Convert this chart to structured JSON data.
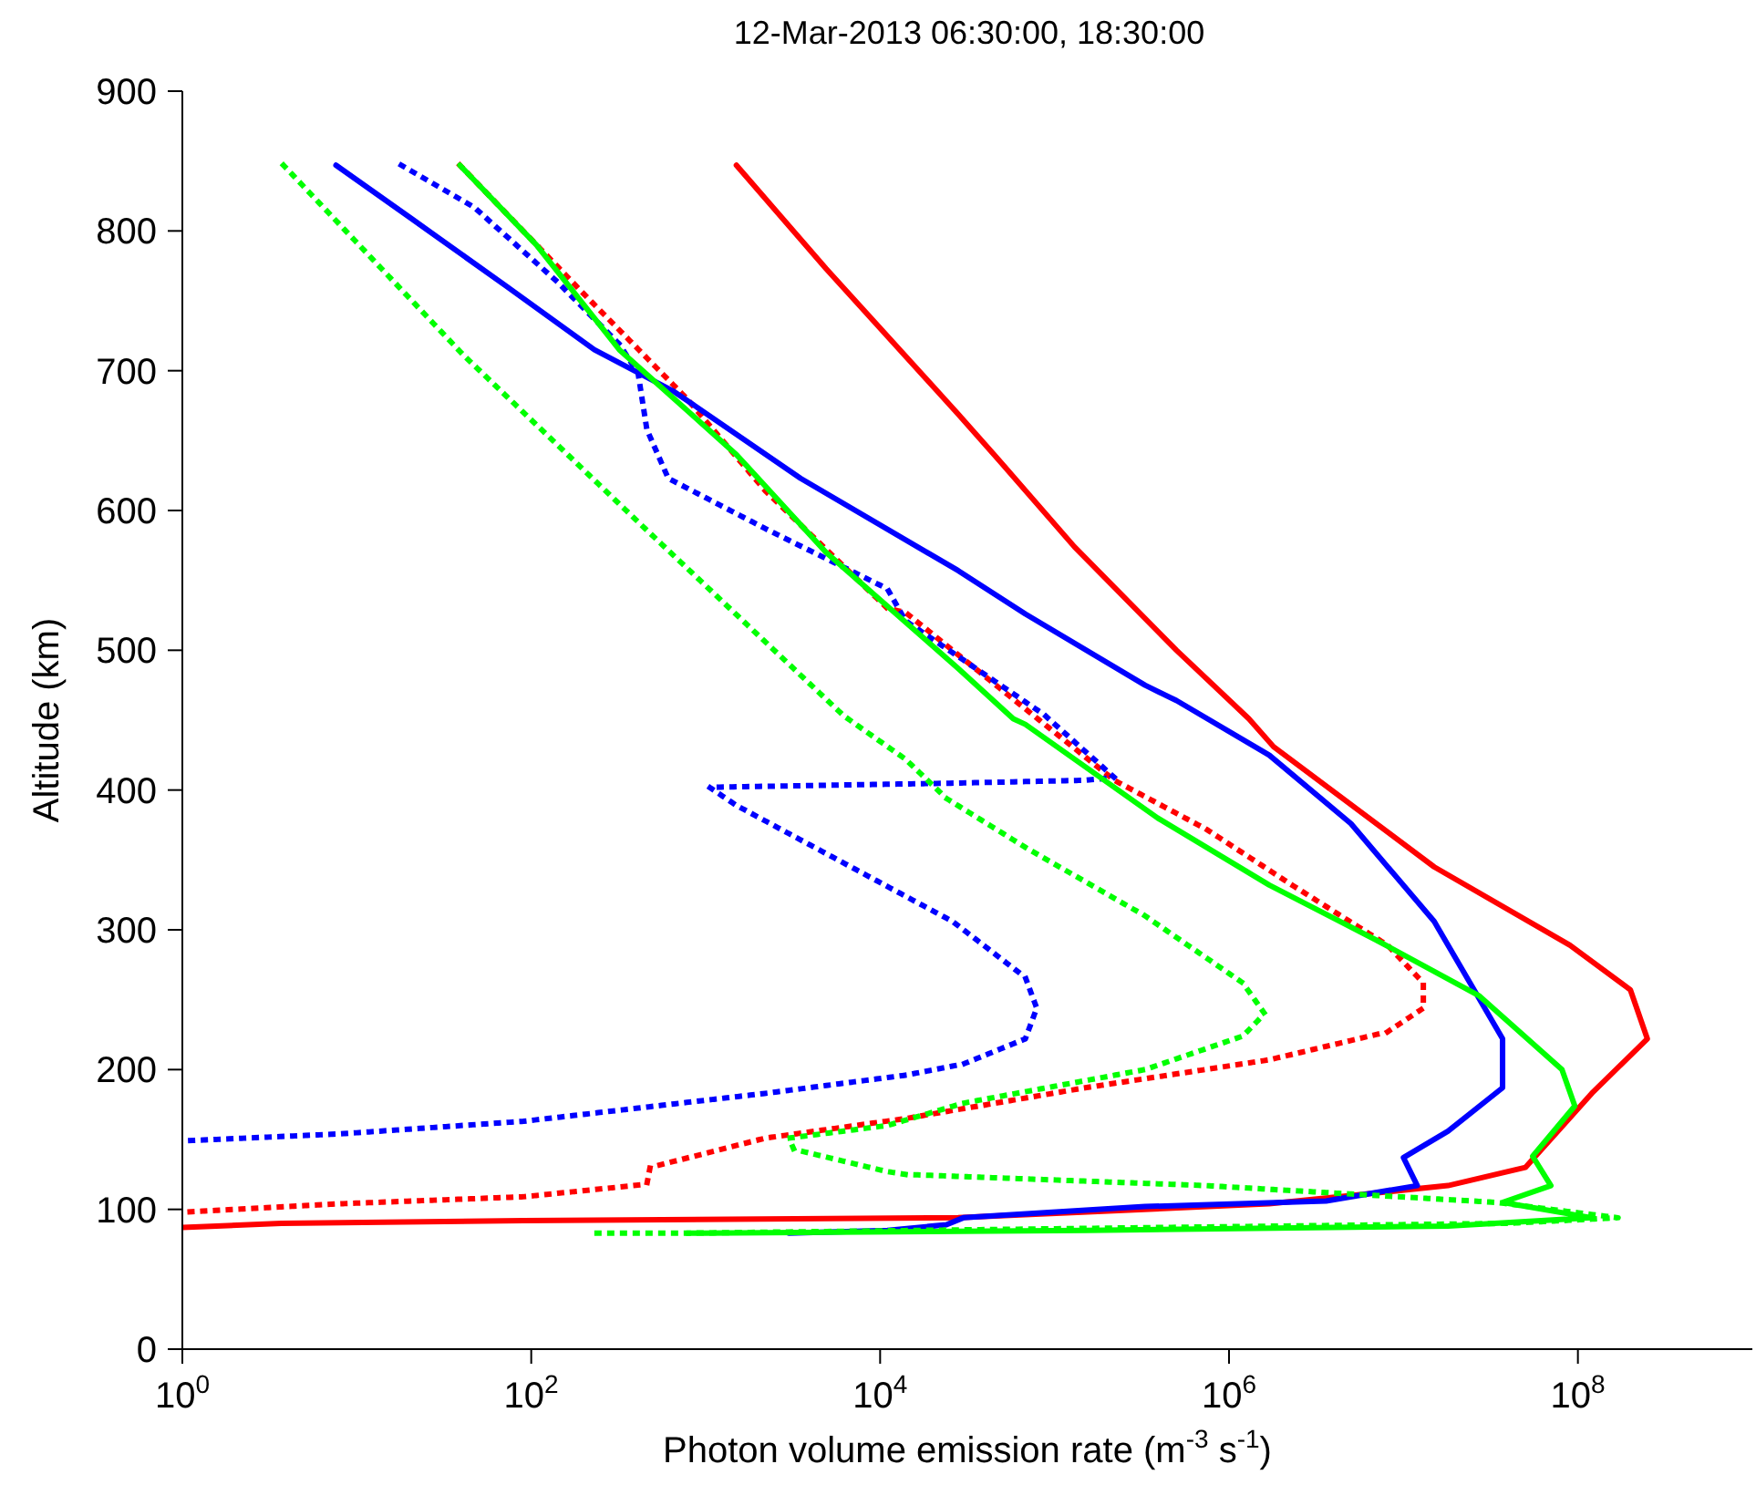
{
  "chart_data": {
    "type": "line",
    "title": "12-Mar-2013 06:30:00, 18:30:00",
    "xlabel": "Photon volume emission rate (m$^{-3}$ s$^{-1}$)",
    "ylabel": "Altitude (km)",
    "log": "x",
    "xlim": [
      1,
      1000000000.0
    ],
    "xticks": [
      {
        "value": 1,
        "label": "10$^{0}$"
      },
      {
        "value": 100,
        "label": "10$^{2}$"
      },
      {
        "value": 10000,
        "label": "10$^{4}$"
      },
      {
        "value": 1000000,
        "label": "10$^{6}$"
      },
      {
        "value": 100000000,
        "label": "10$^{8}$"
      }
    ],
    "ylim": [
      0,
      900
    ],
    "yticks": [
      0,
      100,
      200,
      300,
      400,
      500,
      600,
      700,
      800,
      900
    ],
    "series": [
      {
        "color": "#ff0000",
        "line_style": "solid",
        "x": [
          1500,
          4900,
          28000,
          45000,
          130000,
          500000,
          1300000,
          1800000,
          15000000,
          90000000,
          200000000,
          250000000,
          120000000,
          50000000,
          18000000,
          1700000,
          28000,
          90,
          3.7,
          1
        ],
        "values": [
          847,
          773,
          669,
          640,
          574,
          500,
          451,
          431,
          345,
          289,
          257,
          222,
          183,
          130,
          117,
          104,
          94,
          92,
          90,
          87
        ]
      },
      {
        "color": "#ff0000",
        "line_style": "dotted",
        "x": [
          39,
          200,
          780,
          2200,
          11000,
          14000,
          73000,
          220000,
          740000,
          2300000,
          8100000,
          13000000,
          13000000,
          8100000,
          1700000,
          150000,
          14000,
          2200,
          480,
          460,
          90,
          8,
          1
        ],
        "values": [
          847,
          755,
          680,
          614,
          530,
          527,
          455,
          407,
          372,
          332,
          289,
          262,
          244,
          227,
          207,
          187,
          165,
          151,
          130,
          118,
          109,
          104,
          98
        ]
      },
      {
        "color": "#0000ff",
        "line_style": "solid",
        "x": [
          7.6,
          21,
          71,
          230,
          660,
          3500,
          28000,
          68000,
          330000,
          500000,
          1700000,
          5000000,
          15000000,
          37000000,
          37000000,
          18000000,
          10000000,
          12000000,
          3600000,
          330000,
          30000,
          24000,
          11000,
          3000
        ],
        "values": [
          847,
          808,
          761,
          715,
          685,
          623,
          557,
          526,
          475,
          464,
          425,
          376,
          306,
          222,
          187,
          156,
          137,
          117,
          106,
          102,
          94,
          89,
          85,
          83
        ]
      },
      {
        "color": "#0000ff",
        "line_style": "dotted",
        "x": [
          18,
          47,
          140,
          320,
          410,
          460,
          610,
          2200,
          11000,
          14000,
          87000,
          220000,
          150000,
          28000,
          1050,
          1500,
          26000,
          68000,
          79000,
          68000,
          30000,
          14000,
          2200,
          90,
          8,
          1
        ],
        "values": [
          847,
          817,
          764,
          719,
          698,
          658,
          623,
          587,
          544,
          521,
          454,
          409,
          407,
          405,
          402,
          389,
          306,
          266,
          244,
          222,
          204,
          196,
          183,
          163,
          154,
          149
        ]
      },
      {
        "color": "#00ff00",
        "line_style": "solid",
        "x": [
          39,
          107,
          320,
          1500,
          4900,
          28000,
          58000,
          68000,
          390000,
          1700000,
          6900000,
          27000000,
          81000000,
          96000000,
          55000000,
          70000000,
          37000000,
          120000000,
          18000000,
          150000,
          980,
          780
        ],
        "values": [
          847,
          790,
          715,
          640,
          570,
          487,
          451,
          447,
          380,
          332,
          293,
          253,
          200,
          174,
          138,
          117,
          105,
          94,
          88,
          85,
          83,
          83
        ]
      },
      {
        "color": "#00ff00",
        "line_style": "dotted",
        "x": [
          3.8,
          41,
          450,
          6200,
          14000,
          24000,
          68000,
          330000,
          1200000,
          1600000,
          1200000,
          330000,
          30000,
          11000,
          3000,
          3200,
          11000,
          14000,
          740000,
          34000000,
          170000000,
          40000000,
          780,
          220
        ],
        "values": [
          847,
          711,
          587,
          453,
          422,
          394,
          359,
          310,
          262,
          240,
          224,
          200,
          176,
          160,
          151,
          143,
          127,
          125,
          117,
          105,
          94,
          90,
          83,
          83
        ]
      }
    ]
  }
}
